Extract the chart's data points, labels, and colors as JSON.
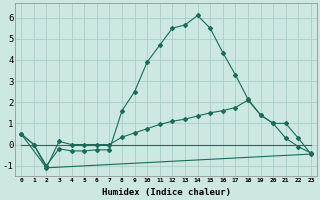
{
  "xlabel": "Humidex (Indice chaleur)",
  "bg_color": "#cce8e0",
  "grid_color": "#aacfc8",
  "line_color": "#1a6b5a",
  "xlim": [
    -0.5,
    23.5
  ],
  "ylim": [
    -1.5,
    6.7
  ],
  "series1_x": [
    0,
    1,
    2,
    3,
    4,
    5,
    6,
    7,
    8,
    9,
    10,
    11,
    12,
    13,
    14,
    15,
    16,
    17,
    18,
    19,
    20,
    21,
    22,
    23
  ],
  "series1_y": [
    0.5,
    0.0,
    -1.0,
    -0.2,
    -0.3,
    -0.3,
    -0.25,
    -0.25,
    1.6,
    2.5,
    3.9,
    4.7,
    5.5,
    5.65,
    6.1,
    5.5,
    4.35,
    3.3,
    2.15,
    1.4,
    1.0,
    0.3,
    -0.1,
    -0.4
  ],
  "series2_x": [
    0,
    1,
    2,
    3,
    4,
    5,
    6,
    7,
    8,
    9,
    10,
    11,
    12,
    13,
    14,
    15,
    16,
    17,
    18,
    19,
    20,
    21,
    22,
    23
  ],
  "series2_y": [
    0.0,
    0.0,
    0.0,
    0.0,
    0.0,
    0.0,
    0.0,
    0.0,
    0.0,
    0.0,
    0.0,
    0.0,
    0.0,
    0.0,
    0.0,
    0.0,
    0.0,
    0.0,
    0.0,
    0.0,
    0.0,
    0.0,
    0.0,
    0.0
  ],
  "series3_x": [
    0,
    1,
    2,
    3,
    4,
    5,
    6,
    7,
    8,
    9,
    10,
    11,
    12,
    13,
    14,
    15,
    16,
    17,
    18,
    19,
    20,
    21,
    22,
    23
  ],
  "series3_y": [
    0.5,
    0.0,
    -1.1,
    0.15,
    0.0,
    0.0,
    0.0,
    0.0,
    0.35,
    0.55,
    0.75,
    0.95,
    1.1,
    1.2,
    1.35,
    1.5,
    1.6,
    1.75,
    2.1,
    1.4,
    1.0,
    1.0,
    0.3,
    -0.45
  ],
  "series4_x": [
    0,
    2,
    23
  ],
  "series4_y": [
    0.5,
    -1.1,
    -0.45
  ]
}
